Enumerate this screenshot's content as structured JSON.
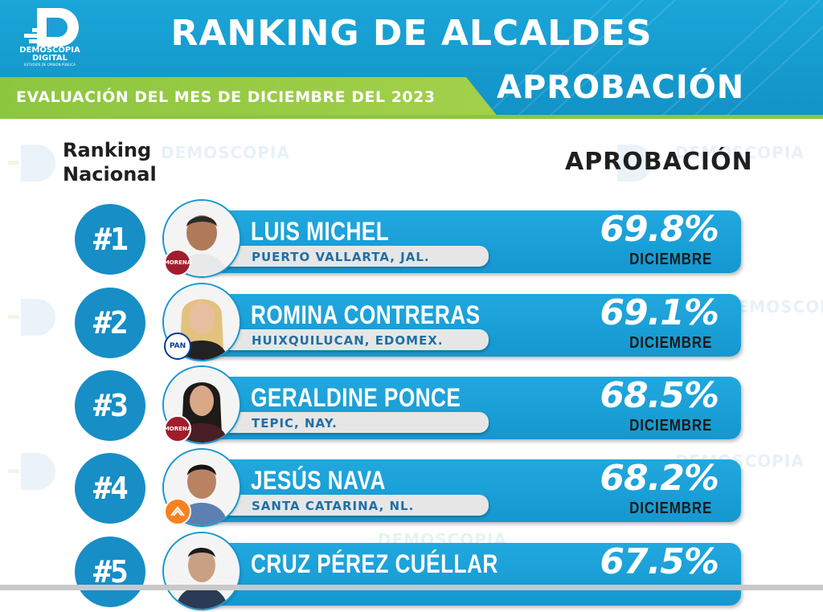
{
  "header": {
    "logo_text": "DEMOSCOPIA DIGITAL",
    "logo_subtext": "ESTUDIOS DE OPINIÓN PÚBLICA",
    "title": "RANKING DE ALCALDES",
    "subtitle": "EVALUACIÓN DEL MES DE DICIEMBRE DEL 2023",
    "right_label": "APROBACIÓN"
  },
  "columns": {
    "rank_label": "Ranking Nacional",
    "approval_label": "APROBACIÓN"
  },
  "watermark_text": "DEMOSCOPIA",
  "colors": {
    "primary_blue": "#178ec6",
    "green": "#8cc63f",
    "morena": "#a11d2c",
    "pan": "#0a3a8c",
    "mc": "#f58220"
  },
  "rows": [
    {
      "rank": "#1",
      "name": "LUIS MICHEL",
      "city": "PUERTO VALLARTA, JAL.",
      "pct": "69.8%",
      "month": "DICIEMBRE",
      "party": "MORENA",
      "party_icon": "morena-logo"
    },
    {
      "rank": "#2",
      "name": "ROMINA CONTRERAS",
      "city": "HUIXQUILUCAN, EDOMEX.",
      "pct": "69.1%",
      "month": "DICIEMBRE",
      "party": "PAN",
      "party_icon": "pan-logo"
    },
    {
      "rank": "#3",
      "name": "GERALDINE PONCE",
      "city": "TEPIC, NAY.",
      "pct": "68.5%",
      "month": "DICIEMBRE",
      "party": "MORENA",
      "party_icon": "morena-logo"
    },
    {
      "rank": "#4",
      "name": "JESÚS NAVA",
      "city": "SANTA CATARINA, NL.",
      "pct": "68.2%",
      "month": "DICIEMBRE",
      "party": "",
      "party_icon": "mc-logo"
    },
    {
      "rank": "#5",
      "name": "CRUZ PÉREZ CUÉLLAR",
      "city": "",
      "pct": "67.5%",
      "month": "",
      "party": "",
      "party_icon": "mc-logo"
    }
  ]
}
